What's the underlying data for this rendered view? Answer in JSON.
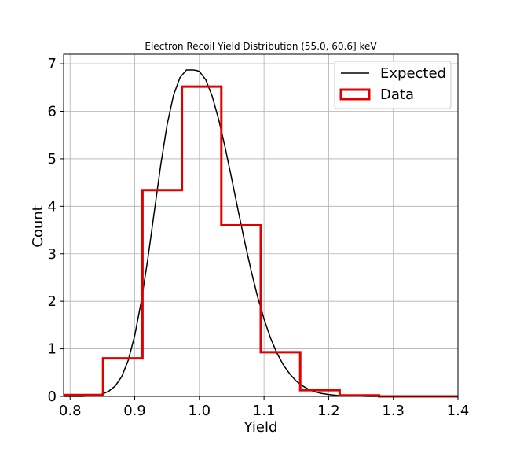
{
  "chart_data": {
    "type": "line",
    "title": "Electron Recoil Yield Distribution (55.0, 60.6] keV",
    "xlabel": "Yield",
    "ylabel": "Count",
    "xlim": [
      0.79,
      1.4
    ],
    "ylim": [
      0,
      7.2
    ],
    "xticks": [
      "0.8",
      "0.9",
      "1.0",
      "1.1",
      "1.2",
      "1.3",
      "1.4"
    ],
    "yticks": [
      "0",
      "1",
      "2",
      "3",
      "4",
      "5",
      "6",
      "7"
    ],
    "grid": true,
    "legend_position": "top-right",
    "series": [
      {
        "name": "Expected",
        "kind": "curve",
        "color": "#000000",
        "x": [
          0.79,
          0.8,
          0.81,
          0.82,
          0.83,
          0.84,
          0.85,
          0.86,
          0.87,
          0.88,
          0.89,
          0.9,
          0.91,
          0.92,
          0.93,
          0.94,
          0.95,
          0.96,
          0.97,
          0.98,
          0.99,
          0.995,
          1.0,
          1.01,
          1.02,
          1.03,
          1.04,
          1.05,
          1.06,
          1.07,
          1.08,
          1.09,
          1.1,
          1.11,
          1.12,
          1.13,
          1.14,
          1.15,
          1.16,
          1.17,
          1.18,
          1.19,
          1.2,
          1.22,
          1.24,
          1.26,
          1.28,
          1.3,
          1.35,
          1.4
        ],
        "y": [
          0.0,
          0.0,
          0.0,
          0.0,
          0.01,
          0.02,
          0.05,
          0.11,
          0.22,
          0.42,
          0.76,
          1.28,
          1.99,
          2.87,
          3.86,
          4.85,
          5.71,
          6.34,
          6.71,
          6.87,
          6.87,
          6.86,
          6.84,
          6.66,
          6.31,
          5.82,
          5.23,
          4.58,
          3.91,
          3.26,
          2.65,
          2.1,
          1.63,
          1.23,
          0.91,
          0.66,
          0.47,
          0.32,
          0.22,
          0.14,
          0.09,
          0.06,
          0.04,
          0.01,
          0.01,
          0.0,
          0.0,
          0.0,
          0.0,
          0.0
        ]
      },
      {
        "name": "Data",
        "kind": "step-histogram",
        "color": "#e00000",
        "bin_edges": [
          0.79,
          0.851,
          0.912,
          0.973,
          1.034,
          1.095,
          1.156,
          1.217,
          1.278,
          1.339,
          1.4
        ],
        "values": [
          0.03,
          0.8,
          4.34,
          6.52,
          3.6,
          0.93,
          0.13,
          0.02,
          0.0,
          0.0
        ]
      }
    ]
  }
}
